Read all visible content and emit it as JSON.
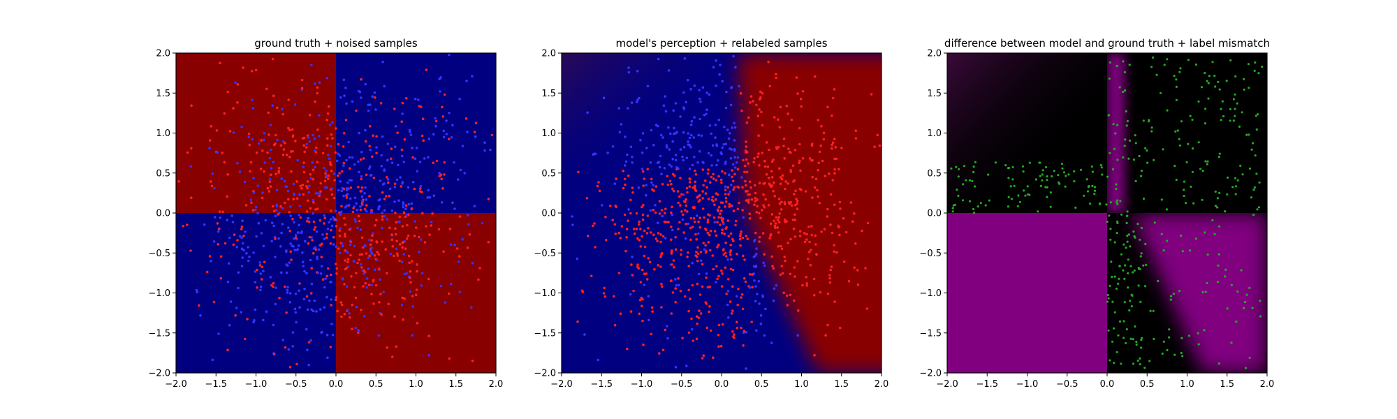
{
  "chart_data": [
    {
      "type": "scatter",
      "title": "ground truth + noised samples",
      "xlim": [
        -2.0,
        2.0
      ],
      "ylim": [
        -2.0,
        2.0
      ],
      "x_ticks": [
        "−2.0",
        "−1.5",
        "−1.0",
        "−0.5",
        "0.0",
        "0.5",
        "1.0",
        "1.5",
        "2.0"
      ],
      "y_ticks": [
        "−2.0",
        "−1.5",
        "−1.0",
        "−0.5",
        "0.0",
        "0.5",
        "1.0",
        "1.5",
        "2.0"
      ],
      "grid": false,
      "background": "ground-truth quadrant map: red where x*y<0, blue where x*y>0",
      "colors": {
        "class_a": "#880000",
        "class_b": "#000080",
        "points_a": "#ff2020",
        "points_b": "#3333ff"
      },
      "point_count": 1000,
      "point_distribution": "uniform in [-2,2]x[-2,2], denser near center; color = noisy label"
    },
    {
      "type": "scatter",
      "title": "model's perception + relabeled samples",
      "xlim": [
        -2.0,
        2.0
      ],
      "ylim": [
        -2.0,
        2.0
      ],
      "x_ticks": [
        "−2.0",
        "−1.5",
        "−1.0",
        "−0.5",
        "0.0",
        "0.5",
        "1.0",
        "1.5",
        "2.0"
      ],
      "y_ticks": [
        "−2.0",
        "−1.5",
        "−1.0",
        "−0.5",
        "0.0",
        "0.5",
        "1.0",
        "1.5",
        "2.0"
      ],
      "grid": false,
      "background": "model decision surface: red region right of a diagonal boundary from (0.2,2.0) through (0.3,0.0) to (1.2,-2.0); blue elsewhere",
      "colors": {
        "class_a": "#880000",
        "class_b": "#000080",
        "points_a": "#ff2020",
        "points_b": "#3333ff"
      },
      "point_count": 1000
    },
    {
      "type": "scatter",
      "title": "difference between model and ground truth + label mismatch",
      "xlim": [
        -2.0,
        2.0
      ],
      "ylim": [
        -2.0,
        2.0
      ],
      "x_ticks": [
        "−2.0",
        "−1.5",
        "−1.0",
        "−0.5",
        "0.0",
        "0.5",
        "1.0",
        "1.5",
        "2.0"
      ],
      "y_ticks": [
        "−2.0",
        "−1.5",
        "−1.0",
        "−0.5",
        "0.0",
        "0.5",
        "1.0",
        "1.5",
        "2.0"
      ],
      "grid": false,
      "background": "difference map: purple where model disagrees with ground truth, black where it agrees",
      "colors": {
        "agree": "#000000",
        "disagree": "#800080",
        "points": "#22aa22"
      },
      "point_count": 420
    }
  ]
}
